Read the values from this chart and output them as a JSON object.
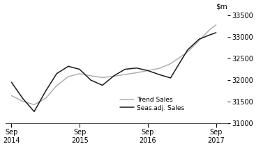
{
  "ylim": [
    31000,
    33600
  ],
  "yticks": [
    31000,
    31500,
    32000,
    32500,
    33000,
    33500
  ],
  "xlim": [
    2014.58,
    2017.83
  ],
  "xtick_positions": [
    2014.667,
    2015.667,
    2016.667,
    2017.667
  ],
  "xtick_labels": [
    "Sep\n2014",
    "Sep\n2015",
    "Sep\n2016",
    "Sep\n2017"
  ],
  "seas_adj_x": [
    2014.667,
    2014.83,
    2015.0,
    2015.17,
    2015.33,
    2015.5,
    2015.667,
    2015.83,
    2016.0,
    2016.17,
    2016.33,
    2016.5,
    2016.667,
    2016.83,
    2017.0,
    2017.25,
    2017.42,
    2017.58,
    2017.667
  ],
  "seas_adj_y": [
    31950,
    31580,
    31270,
    31750,
    32150,
    32320,
    32250,
    32000,
    31880,
    32100,
    32250,
    32280,
    32220,
    32130,
    32050,
    32700,
    32950,
    33050,
    33100
  ],
  "trend_x": [
    2014.667,
    2014.83,
    2015.0,
    2015.17,
    2015.33,
    2015.5,
    2015.667,
    2015.83,
    2016.0,
    2016.17,
    2016.33,
    2016.5,
    2016.667,
    2016.83,
    2017.0,
    2017.25,
    2017.42,
    2017.58,
    2017.667
  ],
  "trend_y": [
    31640,
    31510,
    31430,
    31580,
    31870,
    32080,
    32150,
    32100,
    32060,
    32090,
    32130,
    32170,
    32220,
    32270,
    32380,
    32650,
    32920,
    33180,
    33280
  ],
  "seas_adj_color": "#1a1a1a",
  "trend_color": "#b0b0b0",
  "seas_adj_label": "Seas.adj. Sales",
  "trend_label": "Trend Sales",
  "background_color": "#ffffff",
  "linewidth": 1.1
}
